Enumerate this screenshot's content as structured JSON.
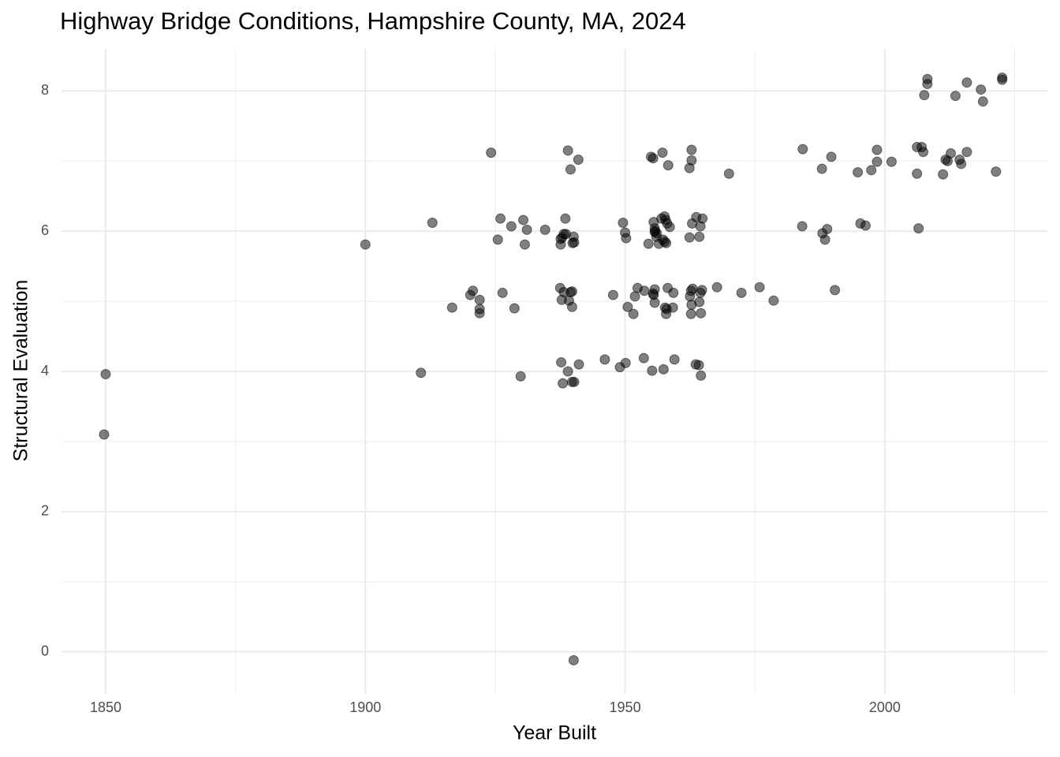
{
  "chart_data": {
    "type": "scatter",
    "title": "Highway Bridge Conditions, Hampshire County, MA, 2024",
    "x_label": "Year Built",
    "y_label": "Structural Evaluation",
    "color": "#000000",
    "opacity": 0.5,
    "grid": true,
    "xlim": [
      1841.5,
      2031.3
    ],
    "ylim": [
      -0.6,
      8.6
    ],
    "xticks": [
      1850,
      1900,
      1950,
      2000
    ],
    "yticks": [
      0,
      2,
      4,
      6,
      8
    ],
    "x_minor": [
      1875,
      1925,
      1975,
      2025
    ],
    "y_minor": [
      1,
      3,
      5,
      7
    ],
    "x": [
      1850,
      1849.7,
      1900,
      1910.7,
      1912.9,
      1916.7,
      1920.2,
      1920.7,
      1922.0,
      1922.0,
      1922.0,
      1924.2,
      1925.5,
      1926.0,
      1926.4,
      1928.1,
      1928.7,
      1929.9,
      1930.4,
      1930.7,
      1931.1,
      1934.6,
      1937.6,
      1937.9,
      1937.6,
      1938.2,
      1937.5,
      1937.8,
      1938.2,
      1937.7,
      1938.0,
      1938.5,
      1938.6,
      1939.0,
      1939.5,
      1941.0,
      1939.2,
      1939.5,
      1939.8,
      1939.0,
      1939.8,
      1940.2,
      1940.1,
      1940.2,
      1939.9,
      1939.8,
      1941.1,
      1940.1,
      1946.1,
      1947.7,
      1949.0,
      1950.1,
      1949.6,
      1950.0,
      1950.2,
      1950.5,
      1951.6,
      1951.9,
      1952.4,
      1953.6,
      1953.7,
      1954.5,
      1955.0,
      1955.4,
      1955.2,
      1955.4,
      1955.5,
      1955.7,
      1955.5,
      1955.7,
      1955.8,
      1956.0,
      1956.1,
      1955.7,
      1955.7,
      1956.5,
      1957.0,
      1957.2,
      1957.6,
      1957.8,
      1957.9,
      1957.6,
      1957.3,
      1957.4,
      1957.7,
      1957.9,
      1958.0,
      1958.1,
      1958.2,
      1958.3,
      1958.6,
      1959.2,
      1959.3,
      1959.5,
      1962.4,
      1962.4,
      1962.5,
      1962.7,
      1962.8,
      1962.7,
      1962.8,
      1962.8,
      1962.9,
      1963.0,
      1963.6,
      1963.7,
      1964.2,
      1964.3,
      1964.5,
      1964.9,
      1964.3,
      1964.5,
      1964.6,
      1964.8,
      1964.6,
      1967.7,
      1970.0,
      1972.4,
      1975.9,
      1978.6,
      1984.1,
      1984.2,
      1987.9,
      1988.0,
      1988.5,
      1988.9,
      1989.7,
      1990.4,
      1994.8,
      1995.3,
      1996.3,
      1997.4,
      1998.5,
      1998.5,
      2001.3,
      2006.2,
      2006.2,
      2006.5,
      2007.1,
      2007.4,
      2007.6,
      2008.2,
      2008.2,
      2011.2,
      2011.7,
      2012.1,
      2012.7,
      2013.6,
      2014.4,
      2014.7,
      2015.8,
      2015.8,
      2018.5,
      2018.9,
      2021.4,
      2022.6,
      2022.6
    ],
    "values": [
      3.96,
      3.1,
      5.81,
      3.98,
      6.12,
      4.91,
      5.09,
      5.15,
      5.02,
      4.89,
      4.83,
      7.12,
      5.88,
      6.18,
      5.12,
      6.07,
      4.9,
      3.93,
      6.16,
      5.81,
      6.02,
      6.02,
      5.89,
      5.91,
      5.81,
      5.96,
      5.19,
      5.02,
      5.13,
      4.13,
      3.83,
      6.18,
      5.96,
      7.15,
      6.88,
      7.02,
      5.01,
      5.13,
      4.92,
      4.0,
      3.85,
      3.85,
      5.92,
      5.84,
      5.83,
      5.14,
      4.1,
      -0.12,
      4.17,
      5.09,
      4.06,
      4.12,
      6.12,
      5.98,
      5.9,
      4.92,
      4.82,
      5.07,
      5.19,
      4.19,
      5.15,
      5.82,
      7.06,
      7.04,
      4.01,
      5.11,
      5.09,
      4.98,
      6.13,
      6.04,
      6.0,
      5.92,
      5.97,
      5.99,
      5.17,
      5.82,
      6.18,
      7.12,
      6.21,
      6.16,
      5.83,
      5.85,
      5.88,
      4.03,
      4.91,
      4.82,
      4.89,
      6.11,
      5.19,
      6.94,
      6.06,
      4.91,
      5.12,
      4.17,
      5.91,
      6.9,
      5.07,
      5.15,
      4.95,
      4.82,
      7.16,
      7.01,
      6.11,
      5.18,
      4.1,
      6.2,
      4.09,
      5.92,
      6.07,
      6.18,
      4.99,
      5.12,
      4.83,
      5.16,
      3.94,
      5.2,
      6.82,
      5.12,
      5.2,
      5.01,
      6.07,
      7.17,
      6.89,
      5.97,
      5.88,
      6.03,
      7.06,
      5.16,
      6.84,
      6.11,
      6.08,
      6.87,
      7.16,
      6.99,
      6.99,
      7.2,
      6.82,
      6.04,
      7.2,
      7.13,
      7.94,
      8.17,
      8.1,
      6.81,
      7.02,
      7.0,
      7.11,
      7.93,
      7.02,
      6.96,
      8.12,
      7.13,
      8.02,
      7.85,
      6.85,
      8.19,
      8.16
    ]
  }
}
